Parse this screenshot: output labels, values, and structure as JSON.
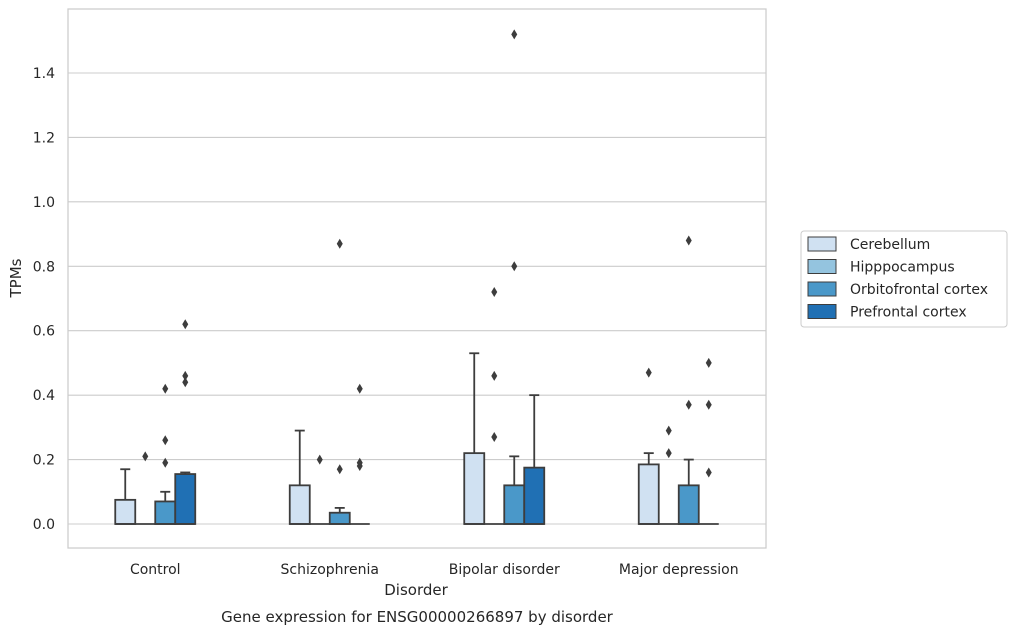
{
  "caption": "Gene expression for ENSG00000266897 by disorder",
  "chart_data": {
    "type": "box",
    "title": "",
    "xlabel": "Disorder",
    "ylabel": "TPMs",
    "categories": [
      "Control",
      "Schizophrenia",
      "Bipolar disorder",
      "Major depression"
    ],
    "ylim": [
      -0.075,
      1.59
    ],
    "yticks": [
      "0.0",
      "0.2",
      "0.4",
      "0.6",
      "0.8",
      "1.0",
      "1.2",
      "1.4"
    ],
    "grid": "horizontal",
    "legend_position": "right",
    "series": [
      {
        "name": "Cerebellum",
        "color": "#d0e1f2",
        "boxes": [
          {
            "q1": 0.0,
            "median": 0.0,
            "q3": 0.075,
            "whisker_low": 0.0,
            "whisker_high": 0.17,
            "outliers": []
          },
          {
            "q1": 0.0,
            "median": 0.0,
            "q3": 0.12,
            "whisker_low": 0.0,
            "whisker_high": 0.29,
            "outliers": []
          },
          {
            "q1": 0.0,
            "median": 0.0,
            "q3": 0.22,
            "whisker_low": 0.0,
            "whisker_high": 0.53,
            "outliers": []
          },
          {
            "q1": 0.0,
            "median": 0.0,
            "q3": 0.185,
            "whisker_low": 0.0,
            "whisker_high": 0.22,
            "outliers": [
              0.47
            ]
          }
        ]
      },
      {
        "name": "Hipppocampus",
        "color": "#94c4df",
        "boxes": [
          {
            "q1": 0.0,
            "median": 0.0,
            "q3": 0.0,
            "whisker_low": 0.0,
            "whisker_high": 0.0,
            "outliers": [
              0.21
            ]
          },
          {
            "q1": 0.0,
            "median": 0.0,
            "q3": 0.0,
            "whisker_low": 0.0,
            "whisker_high": 0.0,
            "outliers": [
              0.2
            ]
          },
          {
            "q1": 0.0,
            "median": 0.0,
            "q3": 0.0,
            "whisker_low": 0.0,
            "whisker_high": 0.0,
            "outliers": [
              0.27,
              0.46,
              0.72
            ]
          },
          {
            "q1": 0.0,
            "median": 0.0,
            "q3": 0.0,
            "whisker_low": 0.0,
            "whisker_high": 0.0,
            "outliers": [
              0.22,
              0.29
            ]
          }
        ]
      },
      {
        "name": "Orbitofrontal cortex",
        "color": "#4a98c9",
        "boxes": [
          {
            "q1": 0.0,
            "median": 0.0,
            "q3": 0.07,
            "whisker_low": 0.0,
            "whisker_high": 0.1,
            "outliers": [
              0.19,
              0.26,
              0.42
            ]
          },
          {
            "q1": 0.0,
            "median": 0.0,
            "q3": 0.035,
            "whisker_low": 0.0,
            "whisker_high": 0.05,
            "outliers": [
              0.17,
              0.87
            ]
          },
          {
            "q1": 0.0,
            "median": 0.0,
            "q3": 0.12,
            "whisker_low": 0.0,
            "whisker_high": 0.21,
            "outliers": [
              0.8,
              1.52
            ]
          },
          {
            "q1": 0.0,
            "median": 0.0,
            "q3": 0.12,
            "whisker_low": 0.0,
            "whisker_high": 0.2,
            "outliers": [
              0.37,
              0.88
            ]
          }
        ]
      },
      {
        "name": "Prefrontal cortex",
        "color": "#2070b4",
        "boxes": [
          {
            "q1": 0.0,
            "median": 0.0,
            "q3": 0.155,
            "whisker_low": 0.0,
            "whisker_high": 0.16,
            "outliers": [
              0.44,
              0.46,
              0.62
            ]
          },
          {
            "q1": 0.0,
            "median": 0.0,
            "q3": 0.0,
            "whisker_low": 0.0,
            "whisker_high": 0.0,
            "outliers": [
              0.18,
              0.19,
              0.42
            ]
          },
          {
            "q1": 0.0,
            "median": 0.0,
            "q3": 0.175,
            "whisker_low": 0.0,
            "whisker_high": 0.4,
            "outliers": []
          },
          {
            "q1": 0.0,
            "median": 0.0,
            "q3": 0.0,
            "whisker_low": 0.0,
            "whisker_high": 0.0,
            "outliers": [
              0.16,
              0.37,
              0.5
            ]
          }
        ]
      }
    ]
  }
}
